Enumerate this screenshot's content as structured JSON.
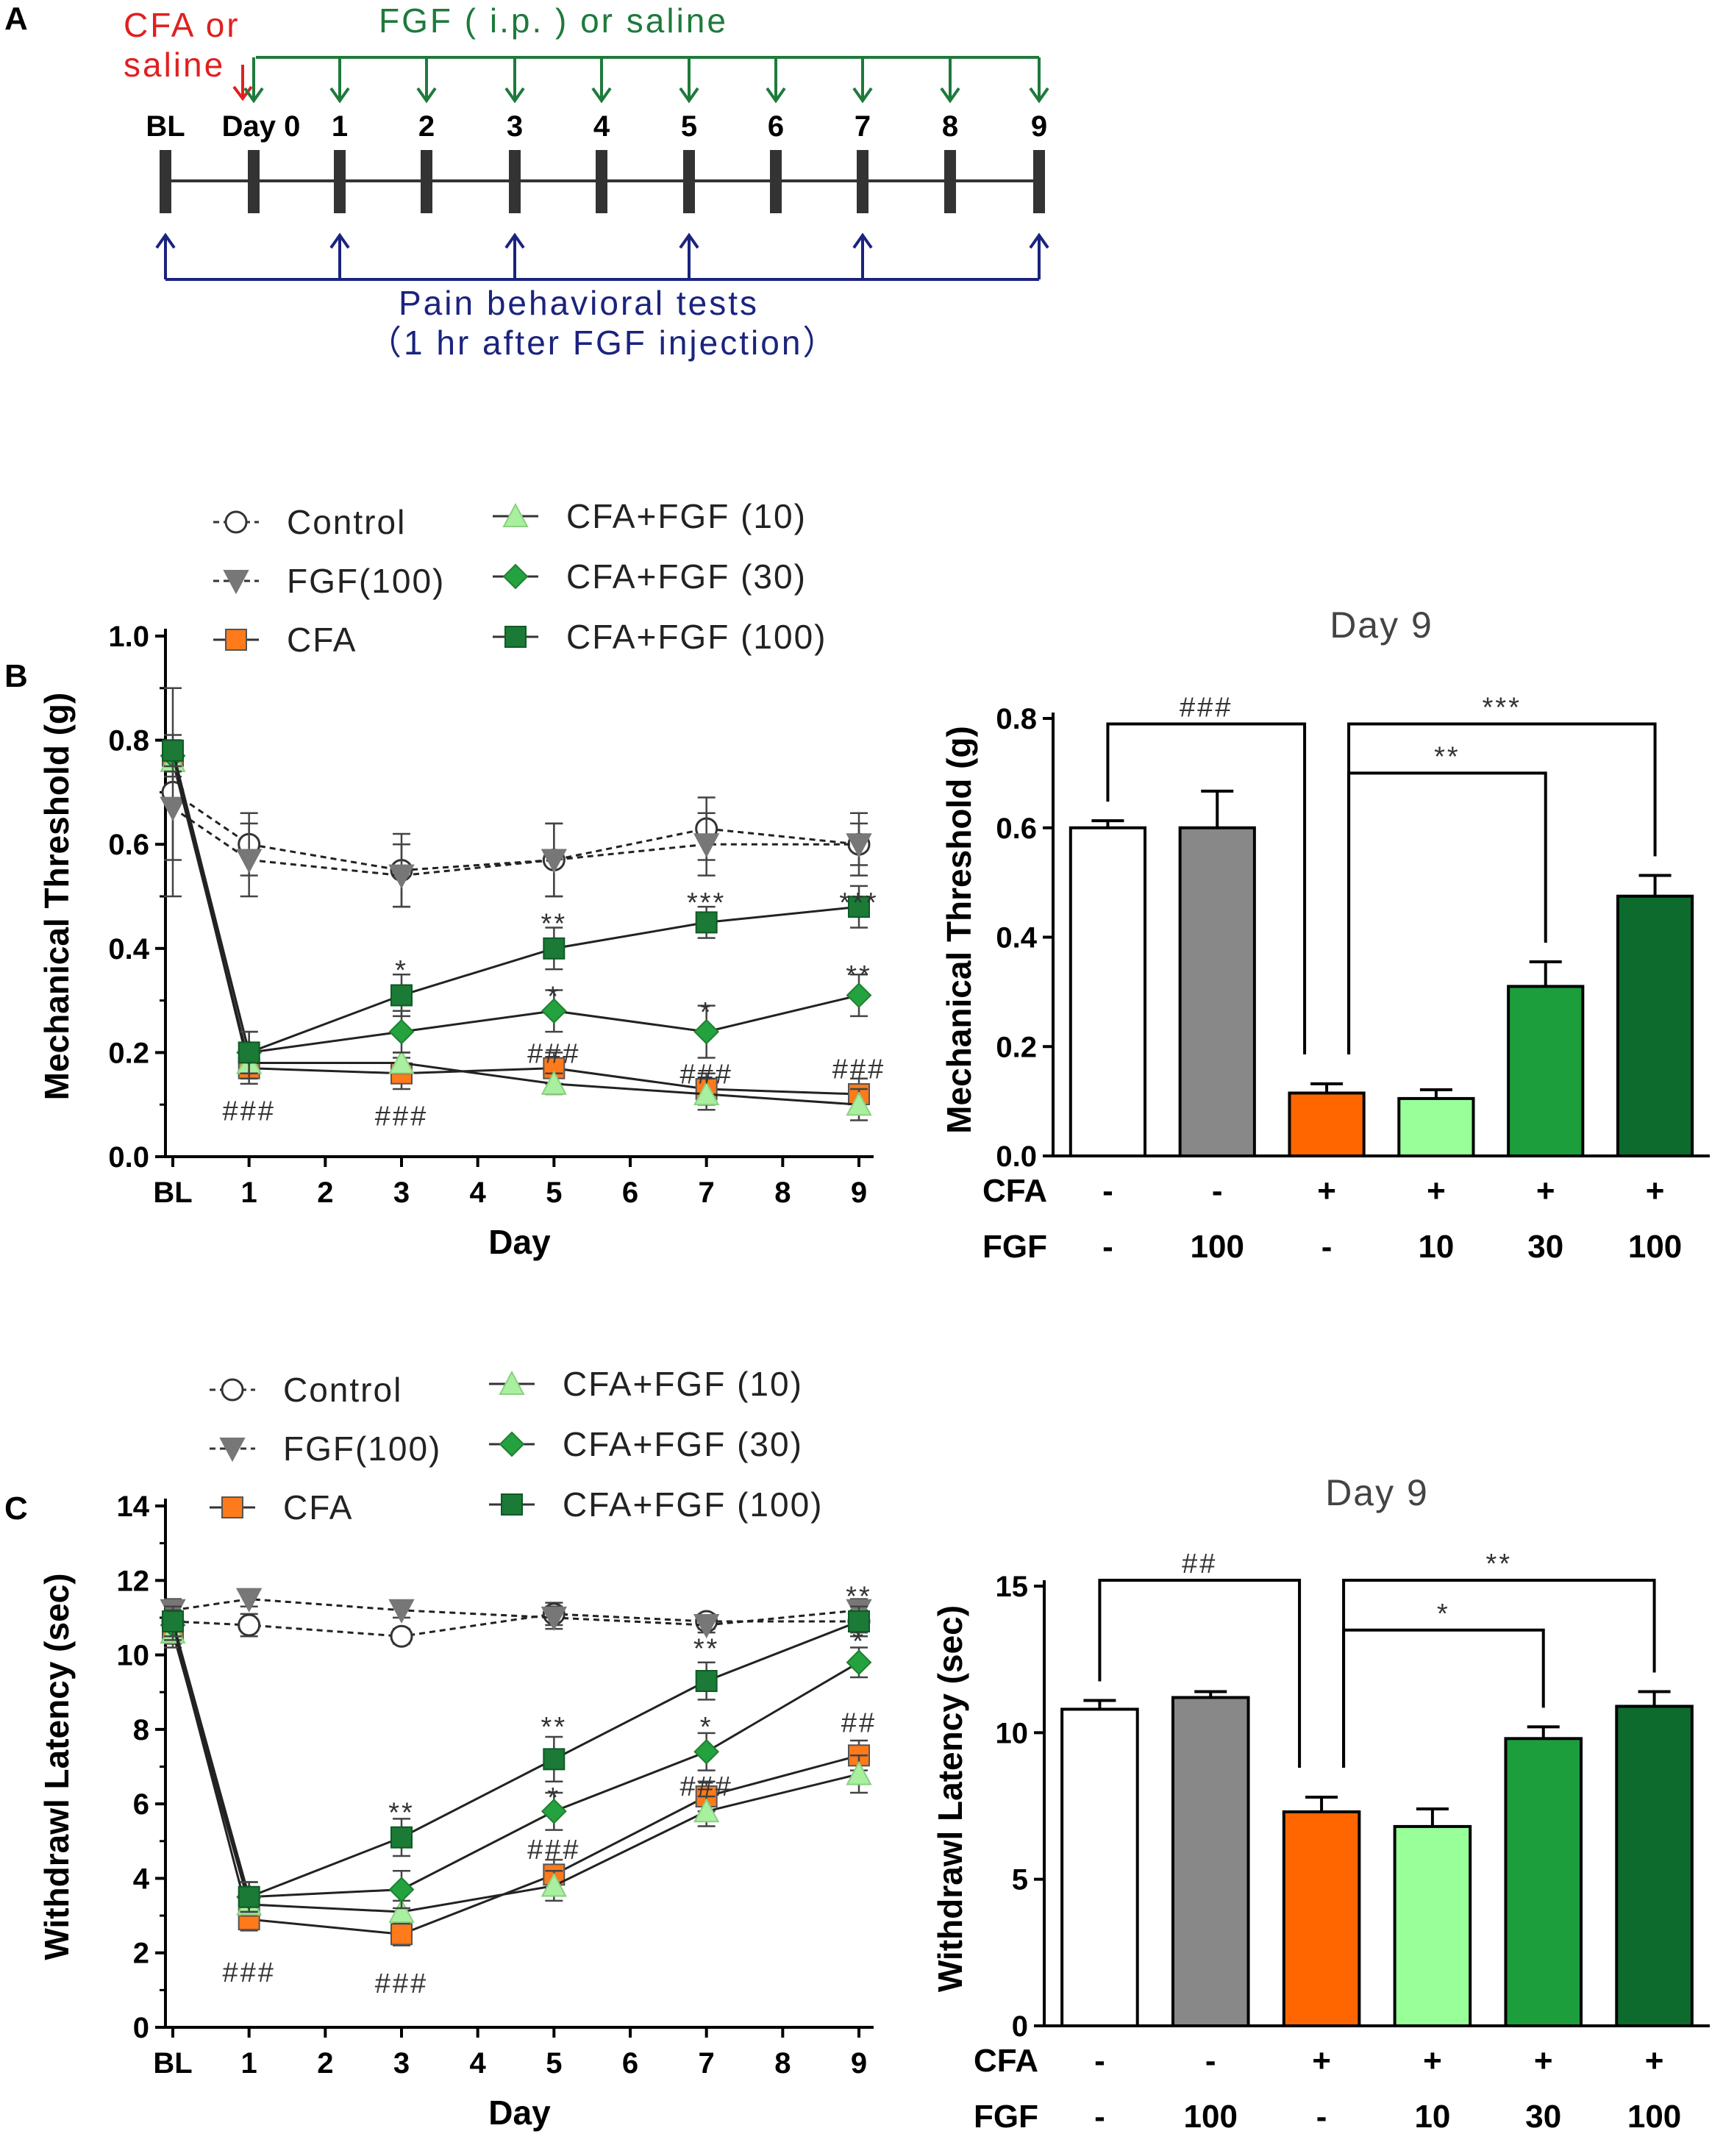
{
  "panel_a": {
    "letter": "A",
    "cfa_label_1": "CFA or",
    "cfa_label_2": "saline",
    "fgf_label": "FGF ( i.p. )  or saline",
    "ticks": [
      "BL",
      "Day 0",
      "1",
      "2",
      "3",
      "4",
      "5",
      "6",
      "7",
      "8",
      "9"
    ],
    "pain_label": "Pain  behavioral  tests",
    "pain_sub": "（1 hr after FGF injection）",
    "colors": {
      "red": "#e02020",
      "green": "#1e7a3c",
      "blue": "#1a237e",
      "bar": "#333333"
    }
  },
  "legend": {
    "control": "Control",
    "fgf100": "FGF(100)",
    "cfa": "CFA",
    "cfa_fgf10": "CFA+FGF (10)",
    "cfa_fgf30": "CFA+FGF (30)",
    "cfa_fgf100": "CFA+FGF (100)"
  },
  "chart_data": [
    {
      "id": "B-line",
      "panel_letter": "B",
      "type": "line",
      "xlabel": "Day",
      "ylabel": "Mechanical Threshold (g)",
      "x_ticks": [
        "BL",
        "1",
        "2",
        "3",
        "4",
        "5",
        "6",
        "7",
        "8",
        "9"
      ],
      "y_ticks": [
        "0.0",
        "0.2",
        "0.4",
        "0.6",
        "0.8",
        "1.0"
      ],
      "ylim": [
        0,
        1.0
      ],
      "series": [
        {
          "name": "Control",
          "style": "control",
          "x": [
            "BL",
            "1",
            "3",
            "5",
            "7",
            "9"
          ],
          "values": [
            0.7,
            0.6,
            0.55,
            0.57,
            0.63,
            0.6
          ],
          "err": [
            0.2,
            0.06,
            0.07,
            0.07,
            0.06,
            0.06
          ]
        },
        {
          "name": "FGF(100)",
          "style": "fgf",
          "x": [
            "BL",
            "1",
            "3",
            "5",
            "7",
            "9"
          ],
          "values": [
            0.67,
            0.57,
            0.54,
            0.57,
            0.6,
            0.6
          ],
          "err": [
            0.1,
            0.07,
            0.06,
            0.07,
            0.06,
            0.04
          ]
        },
        {
          "name": "CFA",
          "style": "cfa",
          "x": [
            "BL",
            "1",
            "3",
            "5",
            "7",
            "9"
          ],
          "values": [
            0.77,
            0.17,
            0.16,
            0.17,
            0.13,
            0.12
          ],
          "err": [
            0.03,
            0.03,
            0.03,
            0.03,
            0.03,
            0.03
          ]
        },
        {
          "name": "CFA+FGF (10)",
          "style": "fgf10",
          "x": [
            "BL",
            "1",
            "3",
            "5",
            "7",
            "9"
          ],
          "values": [
            0.76,
            0.18,
            0.18,
            0.14,
            0.12,
            0.1
          ],
          "err": [
            0.03,
            0.03,
            0.02,
            0.02,
            0.03,
            0.03
          ]
        },
        {
          "name": "CFA+FGF (30)",
          "style": "fgf30",
          "x": [
            "BL",
            "1",
            "3",
            "5",
            "7",
            "9"
          ],
          "values": [
            0.77,
            0.2,
            0.24,
            0.28,
            0.24,
            0.31
          ],
          "err": [
            0.03,
            0.04,
            0.04,
            0.04,
            0.05,
            0.04
          ]
        },
        {
          "name": "CFA+FGF (100)",
          "style": "fgf100c",
          "x": [
            "BL",
            "1",
            "3",
            "5",
            "7",
            "9"
          ],
          "values": [
            0.78,
            0.2,
            0.31,
            0.4,
            0.45,
            0.48
          ],
          "err": [
            0.03,
            0.04,
            0.04,
            0.04,
            0.03,
            0.04
          ]
        }
      ],
      "annotations": [
        {
          "x": "1",
          "y": 0.09,
          "text": "###"
        },
        {
          "x": "3",
          "y": 0.08,
          "text": "###"
        },
        {
          "x": "3",
          "y": 0.36,
          "text": "*"
        },
        {
          "x": "5",
          "y": 0.45,
          "text": "**"
        },
        {
          "x": "5",
          "y": 0.31,
          "text": "*"
        },
        {
          "x": "5",
          "y": 0.2,
          "text": "###"
        },
        {
          "x": "7",
          "y": 0.49,
          "text": "***"
        },
        {
          "x": "7",
          "y": 0.28,
          "text": "*"
        },
        {
          "x": "7",
          "y": 0.16,
          "text": "###"
        },
        {
          "x": "9",
          "y": 0.49,
          "text": "***"
        },
        {
          "x": "9",
          "y": 0.35,
          "text": "**"
        },
        {
          "x": "9",
          "y": 0.17,
          "text": "###"
        }
      ]
    },
    {
      "id": "B-bar",
      "type": "bar",
      "title": "Day 9",
      "ylabel": "Mechanical Threshold (g)",
      "y_ticks": [
        "0.0",
        "0.2",
        "0.4",
        "0.6",
        "0.8"
      ],
      "ylim": [
        0,
        0.8
      ],
      "categories": [
        "Control",
        "FGF(100)",
        "CFA",
        "CFA+FGF (10)",
        "CFA+FGF (30)",
        "CFA+FGF (100)"
      ],
      "values": [
        0.6,
        0.6,
        0.115,
        0.105,
        0.31,
        0.475
      ],
      "err": [
        0.013,
        0.067,
        0.017,
        0.016,
        0.045,
        0.038
      ],
      "colors": [
        "#ffffff",
        "#888888",
        "#ff6600",
        "#99ff99",
        "#1d9e3c",
        "#0d6b2e"
      ],
      "cfa_row": [
        "-",
        "-",
        "+",
        "+",
        "+",
        "+"
      ],
      "fgf_row": [
        "-",
        "100",
        "-",
        "10",
        "30",
        "100"
      ],
      "cfa_label": "CFA",
      "fgf_label": "FGF",
      "brackets": [
        {
          "from": 0,
          "to": 2,
          "y": 0.79,
          "text": "###"
        },
        {
          "from": 2,
          "to": 5,
          "y": 0.79,
          "text": "***"
        },
        {
          "from": 2,
          "to": 4,
          "y": 0.7,
          "text": "**"
        }
      ]
    },
    {
      "id": "C-line",
      "panel_letter": "C",
      "type": "line",
      "xlabel": "Day",
      "ylabel": "Withdrawl Latency (sec)",
      "x_ticks": [
        "BL",
        "1",
        "2",
        "3",
        "4",
        "5",
        "6",
        "7",
        "8",
        "9"
      ],
      "y_ticks": [
        "0",
        "2",
        "4",
        "6",
        "8",
        "10",
        "12",
        "14"
      ],
      "ylim": [
        0,
        14
      ],
      "series": [
        {
          "name": "Control",
          "style": "control",
          "x": [
            "BL",
            "1",
            "3",
            "5",
            "7",
            "9"
          ],
          "values": [
            10.9,
            10.8,
            10.5,
            11.1,
            10.9,
            10.9
          ],
          "err": [
            0.3,
            0.3,
            0.2,
            0.3,
            0.2,
            0.3
          ]
        },
        {
          "name": "FGF(100)",
          "style": "fgf",
          "x": [
            "BL",
            "1",
            "3",
            "5",
            "7",
            "9"
          ],
          "values": [
            11.2,
            11.5,
            11.2,
            11.0,
            10.8,
            11.2
          ],
          "err": [
            0.3,
            0.2,
            0.2,
            0.3,
            0.2,
            0.3
          ]
        },
        {
          "name": "CFA",
          "style": "cfa",
          "x": [
            "BL",
            "1",
            "3",
            "5",
            "7",
            "9"
          ],
          "values": [
            10.7,
            2.9,
            2.5,
            4.1,
            6.2,
            7.3
          ],
          "err": [
            0.4,
            0.3,
            0.3,
            0.4,
            0.4,
            0.4
          ]
        },
        {
          "name": "CFA+FGF (10)",
          "style": "fgf10",
          "x": [
            "BL",
            "1",
            "3",
            "5",
            "7",
            "9"
          ],
          "values": [
            10.6,
            3.3,
            3.1,
            3.8,
            5.8,
            6.8
          ],
          "err": [
            0.4,
            0.3,
            0.3,
            0.4,
            0.4,
            0.5
          ]
        },
        {
          "name": "CFA+FGF (30)",
          "style": "fgf30",
          "x": [
            "BL",
            "1",
            "3",
            "5",
            "7",
            "9"
          ],
          "values": [
            10.8,
            3.5,
            3.7,
            5.8,
            7.4,
            9.8
          ],
          "err": [
            0.4,
            0.4,
            0.5,
            0.5,
            0.5,
            0.4
          ]
        },
        {
          "name": "CFA+FGF (100)",
          "style": "fgf100c",
          "x": [
            "BL",
            "1",
            "3",
            "5",
            "7",
            "9"
          ],
          "values": [
            10.9,
            3.5,
            5.1,
            7.2,
            9.3,
            10.9
          ],
          "err": [
            0.4,
            0.4,
            0.5,
            0.6,
            0.5,
            0.4
          ]
        }
      ],
      "annotations": [
        {
          "x": "1",
          "y": 1.5,
          "text": "###"
        },
        {
          "x": "3",
          "y": 1.2,
          "text": "###"
        },
        {
          "x": "3",
          "y": 5.8,
          "text": "**"
        },
        {
          "x": "5",
          "y": 8.1,
          "text": "**"
        },
        {
          "x": "5",
          "y": 6.2,
          "text": "*"
        },
        {
          "x": "5",
          "y": 4.8,
          "text": "###"
        },
        {
          "x": "7",
          "y": 10.2,
          "text": "**"
        },
        {
          "x": "7",
          "y": 8.1,
          "text": "*"
        },
        {
          "x": "7",
          "y": 6.5,
          "text": "###"
        },
        {
          "x": "9",
          "y": 11.6,
          "text": "**"
        },
        {
          "x": "9",
          "y": 10.4,
          "text": "*"
        },
        {
          "x": "9",
          "y": 8.2,
          "text": "##"
        }
      ]
    },
    {
      "id": "C-bar",
      "type": "bar",
      "title": "Day 9",
      "ylabel": "Withdrawl Latency (sec)",
      "y_ticks": [
        "0",
        "5",
        "10",
        "15"
      ],
      "ylim": [
        0,
        15
      ],
      "categories": [
        "Control",
        "FGF(100)",
        "CFA",
        "CFA+FGF (10)",
        "CFA+FGF (30)",
        "CFA+FGF (100)"
      ],
      "values": [
        10.8,
        11.2,
        7.3,
        6.8,
        9.8,
        10.9
      ],
      "err": [
        0.3,
        0.2,
        0.5,
        0.6,
        0.4,
        0.5
      ],
      "colors": [
        "#ffffff",
        "#888888",
        "#ff6600",
        "#99ff99",
        "#1d9e3c",
        "#0d6b2e"
      ],
      "cfa_row": [
        "-",
        "-",
        "+",
        "+",
        "+",
        "+"
      ],
      "fgf_row": [
        "-",
        "100",
        "-",
        "10",
        "30",
        "100"
      ],
      "cfa_label": "CFA",
      "fgf_label": "FGF",
      "brackets": [
        {
          "from": 0,
          "to": 2,
          "y": 15.2,
          "text": "##"
        },
        {
          "from": 2,
          "to": 5,
          "y": 15.2,
          "text": "**"
        },
        {
          "from": 2,
          "to": 4,
          "y": 13.5,
          "text": "*"
        }
      ]
    }
  ]
}
